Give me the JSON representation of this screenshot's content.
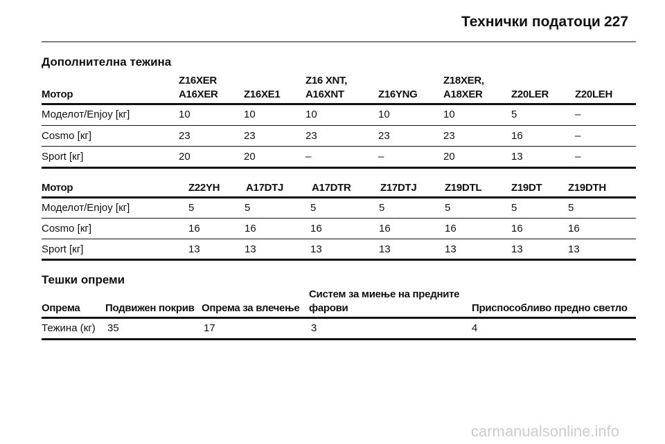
{
  "header": {
    "title": "Технички податоци",
    "page": "227"
  },
  "sections": [
    {
      "title": "Дополнителна тежина",
      "tables": [
        {
          "head": [
            [
              "Мотор"
            ],
            [
              "Z16XER",
              "A16XER"
            ],
            [
              "Z16XE1"
            ],
            [
              "Z16 XNT,",
              "A16XNT"
            ],
            [
              "Z16YNG"
            ],
            [
              "Z18XER,",
              "A18XER"
            ],
            [
              "Z20LER"
            ],
            [
              "Z20LEH"
            ]
          ],
          "rows": [
            [
              "Моделот/Enjoy [кг]",
              "10",
              "10",
              "10",
              "10",
              "10",
              "5",
              "–"
            ],
            [
              "Cosmo [кг]",
              "23",
              "23",
              "23",
              "23",
              "23",
              "16",
              "–"
            ],
            [
              "Sport [кг]",
              "20",
              "20",
              "–",
              "–",
              "20",
              "13",
              "–"
            ]
          ]
        },
        {
          "head": [
            [
              "Мотор"
            ],
            [
              "Z22YH"
            ],
            [
              "A17DTJ"
            ],
            [
              "A17DTR"
            ],
            [
              "Z17DTJ"
            ],
            [
              "Z19DTL"
            ],
            [
              "Z19DT"
            ],
            [
              "Z19DTH"
            ]
          ],
          "rows": [
            [
              "Моделот/Enjoy [кг]",
              "5",
              "5",
              "5",
              "5",
              "5",
              "5",
              "5"
            ],
            [
              "Cosmo [кг]",
              "16",
              "16",
              "16",
              "16",
              "16",
              "16",
              "16"
            ],
            [
              "Sport [кг]",
              "13",
              "13",
              "13",
              "13",
              "13",
              "13",
              "13"
            ]
          ]
        }
      ]
    },
    {
      "title": "Тешки опреми",
      "tables": [
        {
          "head": [
            [
              "Опрема"
            ],
            [
              "Подвижен покрив"
            ],
            [
              "Опрема за влечење"
            ],
            [
              "Систем за миење на предните",
              "фарови"
            ],
            [
              "Приспособливо предно светло"
            ]
          ],
          "rows": [
            [
              "Тежина (кг)",
              "35",
              "17",
              "3",
              "4"
            ]
          ]
        }
      ]
    }
  ],
  "watermark": "carmanualsonline.info"
}
